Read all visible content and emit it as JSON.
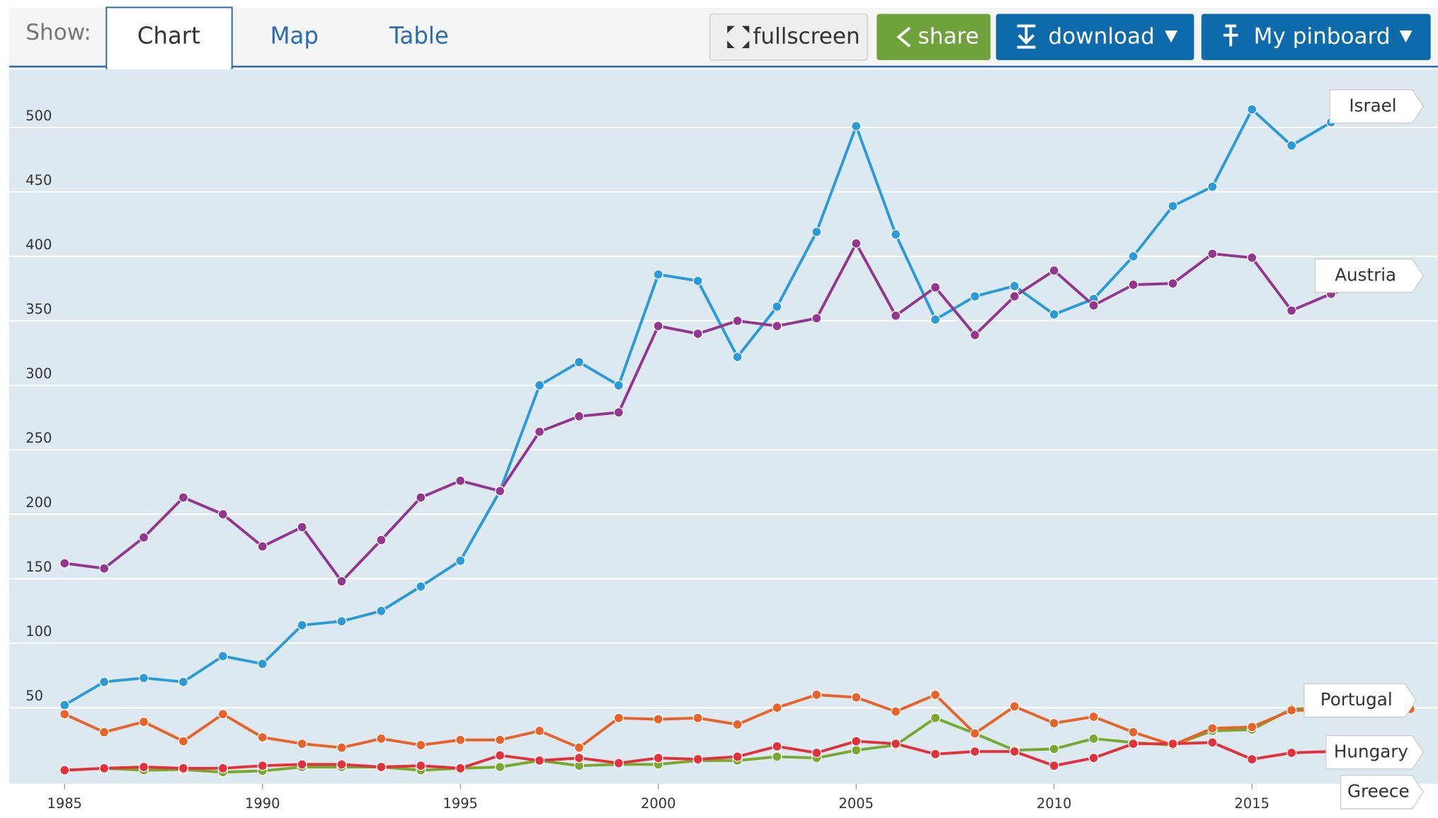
{
  "toolbar": {
    "show_label": "Show:",
    "tabs": [
      "Chart",
      "Map",
      "Table"
    ],
    "buttons": [
      "fullscreen",
      "share",
      "download",
      "My pinboard"
    ]
  },
  "chart_data": {
    "type": "line",
    "x": [
      1985,
      1986,
      1987,
      1988,
      1989,
      1990,
      1991,
      1992,
      1993,
      1994,
      1995,
      1996,
      1997,
      1998,
      1999,
      2000,
      2001,
      2002,
      2003,
      2004,
      2005,
      2006,
      2007,
      2008,
      2009,
      2010,
      2011,
      2012,
      2013,
      2014,
      2015,
      2016,
      2017,
      2018,
      2019
    ],
    "series": [
      {
        "name": "Israel",
        "color": "#2a9ad8",
        "values": [
          52,
          70,
          73,
          70,
          90,
          84,
          114,
          117,
          125,
          144,
          164,
          218,
          300,
          318,
          300,
          386,
          381,
          322,
          361,
          419,
          501,
          417,
          351,
          369,
          377,
          355,
          367,
          400,
          439,
          454,
          514,
          486,
          504,
          510,
          517
        ]
      },
      {
        "name": "Austria",
        "color": "#93368f",
        "values": [
          162,
          158,
          182,
          213,
          200,
          175,
          190,
          148,
          180,
          213,
          226,
          218,
          264,
          276,
          279,
          346,
          340,
          350,
          346,
          352,
          410,
          354,
          376,
          339,
          369,
          389,
          362,
          378,
          379,
          402,
          399,
          358,
          371,
          380,
          384
        ]
      },
      {
        "name": "Portugal",
        "color": "#79a82f",
        "values": [
          1.5,
          3,
          1.5,
          2,
          0,
          1,
          4,
          4,
          4,
          1.5,
          3,
          4,
          9,
          5,
          6,
          6,
          9,
          9,
          12,
          11,
          17,
          21,
          42,
          30,
          17,
          18,
          26,
          23,
          21,
          32,
          33,
          49,
          50,
          52,
          54
        ]
      },
      {
        "name": "Hungary",
        "color": "#e8622a",
        "values": [
          45,
          31,
          39,
          24,
          45,
          27,
          22,
          19,
          26,
          21,
          25,
          25,
          32,
          19,
          42,
          41,
          42,
          37,
          50,
          60,
          58,
          47,
          60,
          30,
          51,
          38,
          43,
          31,
          21,
          34,
          35,
          48,
          48,
          48,
          49
        ]
      },
      {
        "name": "Greece",
        "color": "#e3313c",
        "values": [
          1.5,
          3,
          4,
          3,
          3,
          5,
          6,
          6,
          4,
          5,
          3,
          13,
          9,
          11,
          7,
          11,
          10,
          12,
          20,
          15,
          24,
          22,
          14,
          16,
          16,
          5,
          11,
          22,
          22,
          23,
          10,
          15,
          16,
          17,
          18
        ]
      }
    ],
    "xlim": [
      1983.6,
      2019.7
    ],
    "ylim": [
      -9,
      545
    ],
    "xticks": [
      1985,
      1990,
      1995,
      2000,
      2005,
      2010,
      2015
    ],
    "yticks": [
      50,
      100,
      150,
      200,
      250,
      300,
      350,
      400,
      450,
      500
    ],
    "grid": true
  }
}
